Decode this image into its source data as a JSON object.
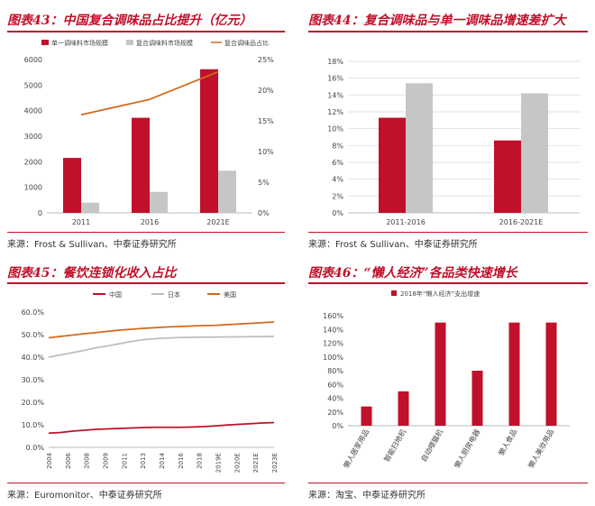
{
  "colors": {
    "red": "#c0102a",
    "gray": "#c6c6c6",
    "orange": "#d2691e",
    "japan": "#bdbdbd",
    "axis": "#bbbbbb",
    "grid": "#e2e2e2"
  },
  "panel43": {
    "title": "图表43：中国复合调味品占比提升（亿元）",
    "source": "来源：Frost & Sullivan、中泰证券研究所"
  },
  "panel44": {
    "title": "图表44：复合调味品与单一调味品增速差扩大",
    "source": "来源：Frost & Sullivan、中泰证券研究所"
  },
  "panel45": {
    "title": "图表45：餐饮连锁化收入占比",
    "source": "来源：Euromonitor、中泰证券研究所"
  },
  "panel46": {
    "title": "图表46：“懒人经济”各品类快速增长",
    "source": "来源：淘宝、中泰证券研究所"
  },
  "chart_data": [
    {
      "id": "c43",
      "type": "bar",
      "categories": [
        "2011",
        "2016",
        "2021E"
      ],
      "series": [
        {
          "name": "单一调味料市场规模",
          "values": [
            2150,
            3720,
            5620
          ],
          "color": "#c0102a"
        },
        {
          "name": "复合调味料市场规模",
          "values": [
            400,
            820,
            1650
          ],
          "color": "#c6c6c6"
        }
      ],
      "line": {
        "name": "复合调味品占比",
        "axis": "right",
        "values": [
          16,
          18.5,
          23
        ],
        "color": "#d2691e"
      },
      "ylim": [
        0,
        6000
      ],
      "yticks": [
        "0",
        "1000",
        "2000",
        "3000",
        "4000",
        "5000",
        "6000"
      ],
      "y2lim": [
        0,
        25
      ],
      "y2ticks": [
        "0%",
        "5%",
        "10%",
        "15%",
        "20%",
        "25%"
      ],
      "legend": "top"
    },
    {
      "id": "c44",
      "type": "bar",
      "categories": [
        "2011-2016",
        "2016-2021E"
      ],
      "series": [
        {
          "name": "red",
          "values": [
            11.3,
            8.6
          ],
          "color": "#c0102a"
        },
        {
          "name": "gray",
          "values": [
            15.4,
            14.2
          ],
          "color": "#c6c6c6"
        }
      ],
      "ylim": [
        0,
        18
      ],
      "yticks": [
        "0%",
        "2%",
        "4%",
        "6%",
        "8%",
        "10%",
        "12%",
        "14%",
        "16%",
        "18%"
      ],
      "grid": true
    },
    {
      "id": "c45",
      "type": "line",
      "x": [
        "2004",
        "2005",
        "2006",
        "2007",
        "2008",
        "2009",
        "2010",
        "2011",
        "2012",
        "2013",
        "2014",
        "2015",
        "2016",
        "2017",
        "2018",
        "2019E",
        "2020E",
        "2021E",
        "2022E",
        "2023E"
      ],
      "xticks": [
        "2004",
        "2006",
        "2008",
        "2009",
        "2011",
        "2013",
        "2014",
        "2016",
        "2018",
        "2019E",
        "2020E",
        "2021E",
        "2023E"
      ],
      "series": [
        {
          "name": "中国",
          "values": [
            6.3,
            6.6,
            7.2,
            7.6,
            8.0,
            8.2,
            8.4,
            8.6,
            8.8,
            8.9,
            8.9,
            8.9,
            9.0,
            9.2,
            9.5,
            9.9,
            10.2,
            10.5,
            10.8,
            11.0
          ],
          "color": "#c0102a"
        },
        {
          "name": "日本",
          "values": [
            40.0,
            41.0,
            42.0,
            43.0,
            44.2,
            45.0,
            46.0,
            47.0,
            47.8,
            48.2,
            48.5,
            48.7,
            48.8,
            48.9,
            48.9,
            49.0,
            49.0,
            49.1,
            49.1,
            49.2
          ],
          "color": "#bdbdbd"
        },
        {
          "name": "美国",
          "values": [
            48.6,
            49.2,
            49.8,
            50.4,
            50.9,
            51.5,
            52.0,
            52.4,
            52.8,
            53.1,
            53.4,
            53.6,
            53.8,
            54.0,
            54.1,
            54.4,
            54.7,
            55.0,
            55.3,
            55.6
          ],
          "color": "#d2691e"
        }
      ],
      "ylim": [
        0,
        60
      ],
      "yticks": [
        "0.0%",
        "10.0%",
        "20.0%",
        "30.0%",
        "40.0%",
        "50.0%",
        "60.0%"
      ],
      "legend": "top"
    },
    {
      "id": "c46",
      "type": "bar",
      "categories": [
        "懒人居家用品",
        "智能扫地机",
        "自动喂猫机",
        "懒人厨房电器",
        "懒人食品",
        "懒人美妆用品"
      ],
      "series": [
        {
          "name": "2018年“懒人经济”支出增速",
          "values": [
            28,
            50,
            150,
            80,
            150,
            150
          ],
          "color": "#c0102a"
        }
      ],
      "ylim": [
        0,
        160
      ],
      "yticks": [
        "0%",
        "20%",
        "40%",
        "60%",
        "80%",
        "100%",
        "120%",
        "140%",
        "160%"
      ],
      "legend": "top"
    }
  ]
}
